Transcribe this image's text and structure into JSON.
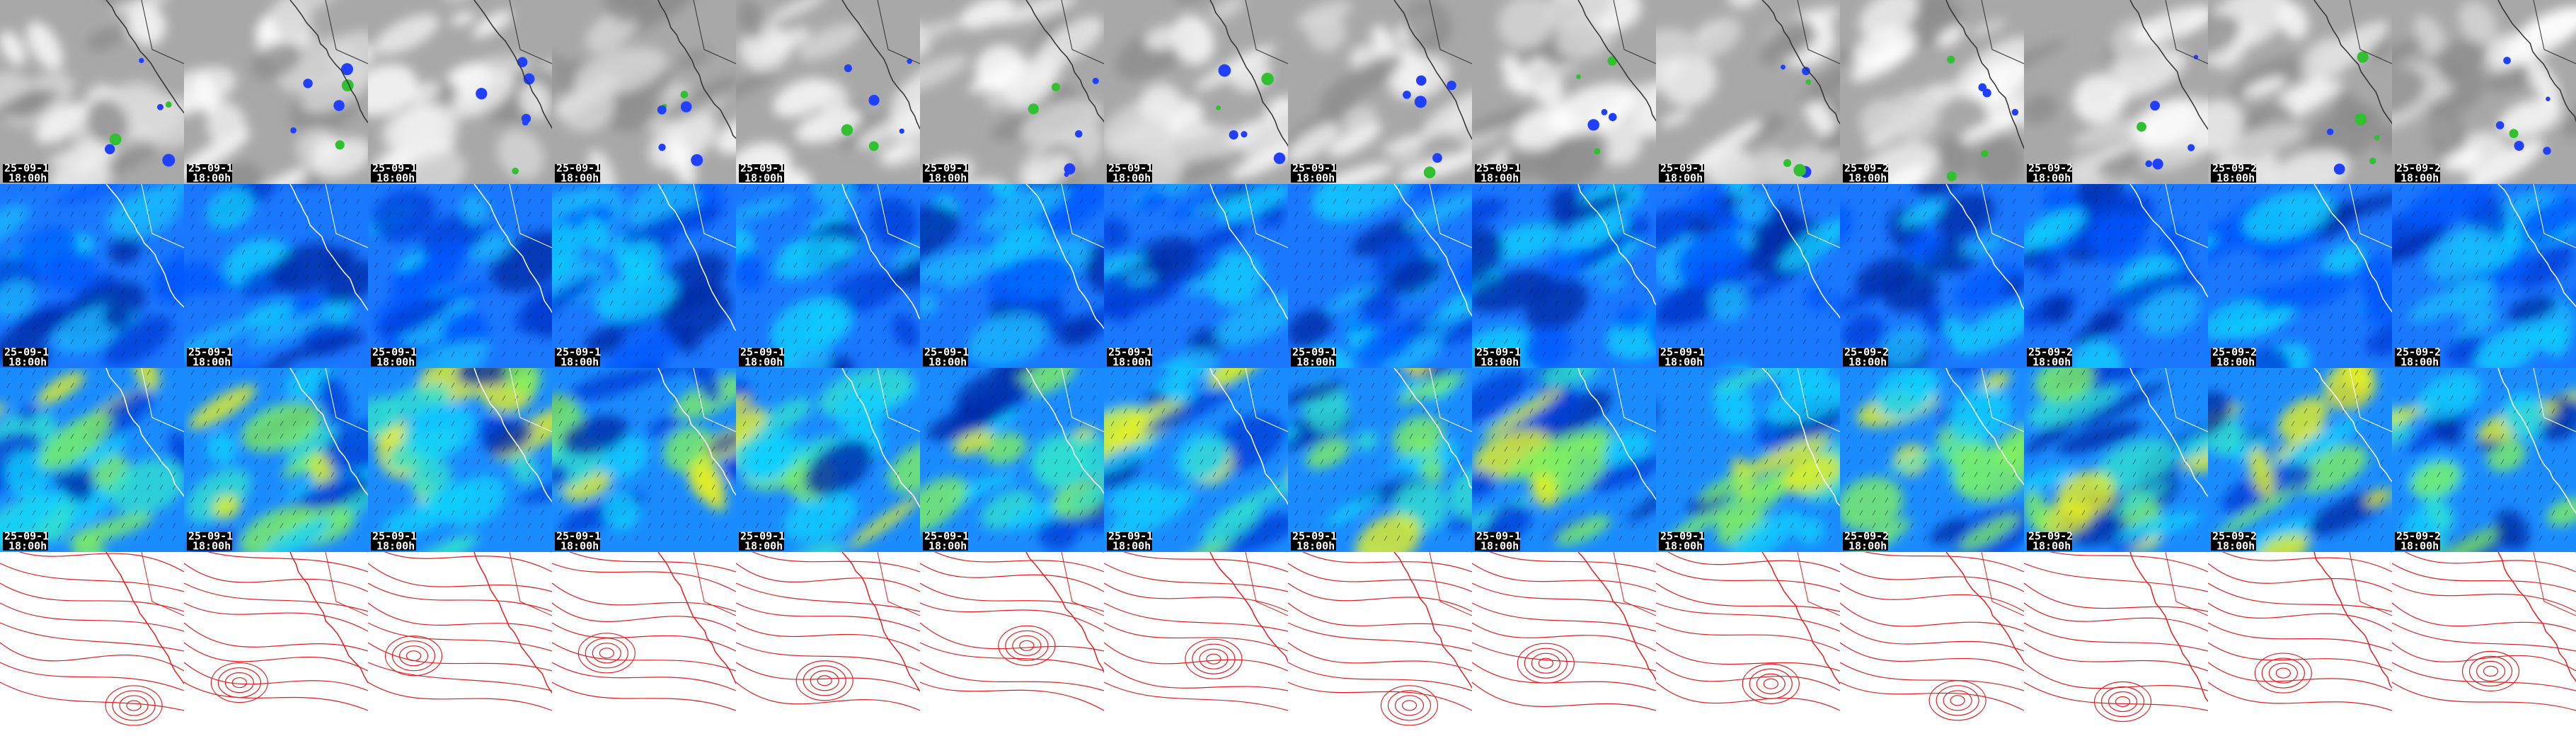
{
  "rows": [
    {
      "panels": [
        {
          "date": "25-09-1",
          "time": "18:00h"
        },
        {
          "date": "25-09-1",
          "time": "18:00h"
        },
        {
          "date": "25-09-1",
          "time": "18:00h"
        },
        {
          "date": "25-09-1",
          "time": "18:00h"
        },
        {
          "date": "25-09-1",
          "time": "18:00h"
        },
        {
          "date": "25-09-1",
          "time": "18:00h"
        },
        {
          "date": "25-09-1",
          "time": "18:00h"
        },
        {
          "date": "25-09-1",
          "time": "18:00h"
        },
        {
          "date": "25-09-1",
          "time": "18:00h"
        },
        {
          "date": "25-09-1",
          "time": "18:00h"
        },
        {
          "date": "25-09-2",
          "time": "18:00h"
        },
        {
          "date": "25-09-2",
          "time": "18:00h"
        },
        {
          "date": "25-09-2",
          "time": "18:00h"
        },
        {
          "date": "25-09-2",
          "time": "18:00h"
        }
      ]
    },
    {
      "panels": [
        {
          "date": "25-09-1",
          "time": "18:00h"
        },
        {
          "date": "25-09-1",
          "time": "18:00h"
        },
        {
          "date": "25-09-1",
          "time": "18:00h"
        },
        {
          "date": "25-09-1",
          "time": "18:00h"
        },
        {
          "date": "25-09-1",
          "time": "18:00h"
        },
        {
          "date": "25-09-1",
          "time": "18:00h"
        },
        {
          "date": "25-09-1",
          "time": "18:00h"
        },
        {
          "date": "25-09-1",
          "time": "18:00h"
        },
        {
          "date": "25-09-1",
          "time": "18:00h"
        },
        {
          "date": "25-09-1",
          "time": "18:00h"
        },
        {
          "date": "25-09-2",
          "time": "18:00h"
        },
        {
          "date": "25-09-2",
          "time": "18:00h"
        },
        {
          "date": "25-09-2",
          "time": "18:00h"
        },
        {
          "date": "25-09-2",
          "time": "18:00h"
        }
      ]
    },
    {
      "panels": [
        {
          "date": "25-09-1",
          "time": "18:00h"
        },
        {
          "date": "25-09-1",
          "time": "18:00h"
        },
        {
          "date": "25-09-1",
          "time": "18:00h"
        },
        {
          "date": "25-09-1",
          "time": "18:00h"
        },
        {
          "date": "25-09-1",
          "time": "18:00h"
        },
        {
          "date": "25-09-1",
          "time": "18:00h"
        },
        {
          "date": "25-09-1",
          "time": "18:00h"
        },
        {
          "date": "25-09-1",
          "time": "18:00h"
        },
        {
          "date": "25-09-1",
          "time": "18:00h"
        },
        {
          "date": "25-09-1",
          "time": "18:00h"
        },
        {
          "date": "25-09-2",
          "time": "18:00h"
        },
        {
          "date": "25-09-2",
          "time": "18:00h"
        },
        {
          "date": "25-09-2",
          "time": "18:00h"
        },
        {
          "date": "25-09-2",
          "time": "18:00h"
        }
      ]
    }
  ]
}
